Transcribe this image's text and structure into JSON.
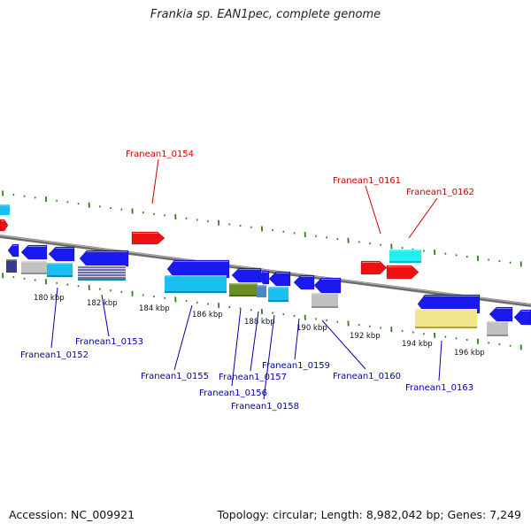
{
  "title": "Frankia sp. EAN1pec, complete genome",
  "footer": {
    "accession": "Accession: NC_009921",
    "info": "Topology: circular; Length: 8,982,042 bp; Genes: 7,249"
  },
  "colors": {
    "backbone": "#7f7f7f",
    "dotted_track": "#2e7d1a",
    "gene_blue": "#1a1aee",
    "gene_cyan": "#19c0f0",
    "gene_red": "#ee1111",
    "gene_light_cyan": "#22eeee",
    "gene_gray": "#c0c0c0",
    "gene_olive": "#6b8e23",
    "gene_khaki": "#f0e68c",
    "gene_navy": "#3a3a8a",
    "gene_striped": "#6a6a9a",
    "label_forward": "#cc0000",
    "label_reverse": "#0000aa"
  },
  "scale_labels": [
    "180 kbp",
    "182 kbp",
    "184 kbp",
    "186 kbp",
    "188 kbp",
    "190 kbp",
    "192 kbp",
    "194 kbp",
    "196 kbp"
  ],
  "gene_labels": {
    "forward": [
      "Franean1_0154",
      "Franean1_0161",
      "Franean1_0162"
    ],
    "reverse": [
      "Franean1_0152",
      "Franean1_0153",
      "Franean1_0155",
      "Franean1_0156",
      "Franean1_0157",
      "Franean1_0158",
      "Franean1_0159",
      "Franean1_0160",
      "Franean1_0163"
    ]
  }
}
